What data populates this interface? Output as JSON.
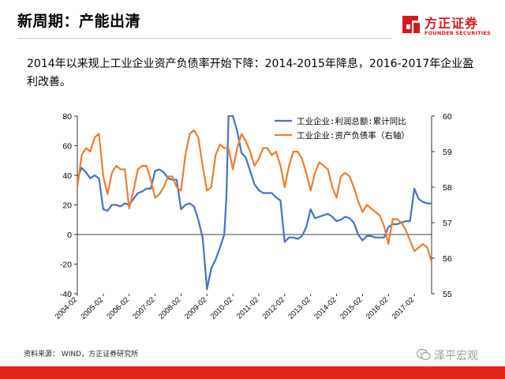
{
  "header": {
    "title": "新周期：产能出清",
    "subtitle": "2014年以来规上工业企业资产负债率开始下降：2014-2015年降息，2016-2017年企业盈利改善。"
  },
  "brand": {
    "cn": "方正证券",
    "en": "FOUNDER SECURITIES",
    "color": "#d7191d"
  },
  "footer": {
    "source": "资料来源： WIND，方正证券研究所",
    "watermark": "泽平宏观",
    "bar_color": "#e0251b"
  },
  "chart_data": {
    "type": "line",
    "title": "",
    "x_start": "2004-02",
    "x_end": "2017-10",
    "x_tick_labels": [
      "2004-02",
      "2005-02",
      "2006-02",
      "2007-02",
      "2008-02",
      "2009-02",
      "2010-02",
      "2011-02",
      "2012-02",
      "2013-02",
      "2014-02",
      "2015-02",
      "2016-02",
      "2017-02"
    ],
    "y_left": {
      "min": -40,
      "max": 80,
      "step": 20,
      "ticks": [
        "-40",
        "-20",
        "0",
        "20",
        "40",
        "60",
        "80"
      ]
    },
    "y_right": {
      "min": 55,
      "max": 60,
      "step": 1,
      "ticks": [
        "55",
        "56",
        "57",
        "58",
        "59",
        "60"
      ]
    },
    "legend_position": "top-right",
    "series": [
      {
        "name": "工业企业:利润总额:累计同比",
        "axis": "left",
        "color": "#4472c4",
        "points": [
          [
            "2004-02",
            38
          ],
          [
            "2004-04",
            45
          ],
          [
            "2004-06",
            42
          ],
          [
            "2004-08",
            38
          ],
          [
            "2004-10",
            40
          ],
          [
            "2004-12",
            38
          ],
          [
            "2005-02",
            17
          ],
          [
            "2005-04",
            16
          ],
          [
            "2005-06",
            20
          ],
          [
            "2005-08",
            20
          ],
          [
            "2005-10",
            19
          ],
          [
            "2005-12",
            21
          ],
          [
            "2006-02",
            20
          ],
          [
            "2006-04",
            24
          ],
          [
            "2006-06",
            28
          ],
          [
            "2006-08",
            29
          ],
          [
            "2006-10",
            31
          ],
          [
            "2006-12",
            31
          ],
          [
            "2007-02",
            43
          ],
          [
            "2007-04",
            44
          ],
          [
            "2007-06",
            42
          ],
          [
            "2007-08",
            38
          ],
          [
            "2007-10",
            37
          ],
          [
            "2007-12",
            37
          ],
          [
            "2008-02",
            17
          ],
          [
            "2008-04",
            20
          ],
          [
            "2008-06",
            21
          ],
          [
            "2008-08",
            19
          ],
          [
            "2008-10",
            10
          ],
          [
            "2008-12",
            -2
          ],
          [
            "2009-02",
            -37
          ],
          [
            "2009-04",
            -23
          ],
          [
            "2009-06",
            -17
          ],
          [
            "2009-08",
            -9
          ],
          [
            "2009-10",
            0
          ],
          [
            "2009-11",
            25
          ],
          [
            "2009-12",
            80
          ],
          [
            "2010-02",
            80
          ],
          [
            "2010-04",
            70
          ],
          [
            "2010-06",
            55
          ],
          [
            "2010-08",
            52
          ],
          [
            "2010-10",
            43
          ],
          [
            "2010-12",
            34
          ],
          [
            "2011-02",
            30
          ],
          [
            "2011-04",
            28
          ],
          [
            "2011-06",
            28
          ],
          [
            "2011-08",
            28
          ],
          [
            "2011-10",
            25
          ],
          [
            "2011-12",
            23
          ],
          [
            "2012-02",
            -5
          ],
          [
            "2012-04",
            -2
          ],
          [
            "2012-06",
            -2
          ],
          [
            "2012-08",
            -3
          ],
          [
            "2012-10",
            -1
          ],
          [
            "2012-12",
            5
          ],
          [
            "2013-02",
            17
          ],
          [
            "2013-04",
            11
          ],
          [
            "2013-06",
            12
          ],
          [
            "2013-08",
            13
          ],
          [
            "2013-10",
            14
          ],
          [
            "2013-12",
            12
          ],
          [
            "2014-02",
            9
          ],
          [
            "2014-04",
            10
          ],
          [
            "2014-06",
            12
          ],
          [
            "2014-08",
            11
          ],
          [
            "2014-10",
            8
          ],
          [
            "2014-12",
            0
          ],
          [
            "2015-02",
            -4
          ],
          [
            "2015-04",
            -1
          ],
          [
            "2015-06",
            -1
          ],
          [
            "2015-08",
            -2
          ],
          [
            "2015-10",
            -2
          ],
          [
            "2015-12",
            -2
          ],
          [
            "2016-02",
            5
          ],
          [
            "2016-04",
            7
          ],
          [
            "2016-06",
            7
          ],
          [
            "2016-08",
            8
          ],
          [
            "2016-10",
            9
          ],
          [
            "2016-12",
            9
          ],
          [
            "2017-02",
            31
          ],
          [
            "2017-04",
            24
          ],
          [
            "2017-06",
            22
          ],
          [
            "2017-08",
            21
          ],
          [
            "2017-10",
            21
          ]
        ]
      },
      {
        "name": "工业企业:资产负债率（右轴）",
        "axis": "right",
        "color": "#ed7d31",
        "points": [
          [
            "2004-02",
            58.0
          ],
          [
            "2004-04",
            58.9
          ],
          [
            "2004-06",
            59.1
          ],
          [
            "2004-08",
            59.0
          ],
          [
            "2004-10",
            59.4
          ],
          [
            "2004-12",
            59.5
          ],
          [
            "2005-02",
            58.3
          ],
          [
            "2005-04",
            57.8
          ],
          [
            "2005-06",
            58.4
          ],
          [
            "2005-08",
            58.6
          ],
          [
            "2005-10",
            58.5
          ],
          [
            "2005-12",
            58.5
          ],
          [
            "2006-02",
            57.4
          ],
          [
            "2006-04",
            57.9
          ],
          [
            "2006-06",
            58.5
          ],
          [
            "2006-08",
            58.6
          ],
          [
            "2006-10",
            58.6
          ],
          [
            "2006-12",
            58.2
          ],
          [
            "2007-02",
            57.7
          ],
          [
            "2007-04",
            57.8
          ],
          [
            "2007-06",
            58.0
          ],
          [
            "2007-08",
            58.3
          ],
          [
            "2007-10",
            58.3
          ],
          [
            "2007-12",
            58.0
          ],
          [
            "2008-02",
            57.9
          ],
          [
            "2008-04",
            58.9
          ],
          [
            "2008-06",
            59.5
          ],
          [
            "2008-08",
            59.6
          ],
          [
            "2008-10",
            59.4
          ],
          [
            "2008-12",
            58.6
          ],
          [
            "2009-02",
            57.9
          ],
          [
            "2009-04",
            58.0
          ],
          [
            "2009-06",
            58.9
          ],
          [
            "2009-08",
            59.2
          ],
          [
            "2009-10",
            59.1
          ],
          [
            "2009-12",
            59.1
          ],
          [
            "2010-02",
            58.5
          ],
          [
            "2010-04",
            59.1
          ],
          [
            "2010-06",
            59.5
          ],
          [
            "2010-08",
            59.3
          ],
          [
            "2010-10",
            59.0
          ],
          [
            "2010-12",
            58.6
          ],
          [
            "2011-02",
            58.8
          ],
          [
            "2011-04",
            59.1
          ],
          [
            "2011-06",
            59.1
          ],
          [
            "2011-08",
            58.9
          ],
          [
            "2011-10",
            59.0
          ],
          [
            "2011-12",
            58.6
          ],
          [
            "2012-02",
            58.0
          ],
          [
            "2012-04",
            58.6
          ],
          [
            "2012-06",
            59.0
          ],
          [
            "2012-08",
            59.0
          ],
          [
            "2012-10",
            58.8
          ],
          [
            "2012-12",
            58.4
          ],
          [
            "2013-02",
            57.9
          ],
          [
            "2013-04",
            58.4
          ],
          [
            "2013-06",
            58.7
          ],
          [
            "2013-08",
            58.6
          ],
          [
            "2013-10",
            58.5
          ],
          [
            "2013-12",
            58.0
          ],
          [
            "2014-02",
            57.7
          ],
          [
            "2014-04",
            58.3
          ],
          [
            "2014-06",
            58.4
          ],
          [
            "2014-08",
            58.3
          ],
          [
            "2014-10",
            58.0
          ],
          [
            "2014-12",
            57.6
          ],
          [
            "2015-02",
            57.3
          ],
          [
            "2015-04",
            57.5
          ],
          [
            "2015-06",
            57.4
          ],
          [
            "2015-08",
            57.3
          ],
          [
            "2015-10",
            57.2
          ],
          [
            "2015-12",
            56.9
          ],
          [
            "2016-02",
            56.4
          ],
          [
            "2016-04",
            57.1
          ],
          [
            "2016-06",
            57.1
          ],
          [
            "2016-08",
            57.0
          ],
          [
            "2016-10",
            56.8
          ],
          [
            "2016-12",
            56.5
          ],
          [
            "2017-02",
            56.2
          ],
          [
            "2017-04",
            56.3
          ],
          [
            "2017-06",
            56.4
          ],
          [
            "2017-08",
            56.3
          ],
          [
            "2017-10",
            55.9
          ]
        ]
      }
    ]
  }
}
